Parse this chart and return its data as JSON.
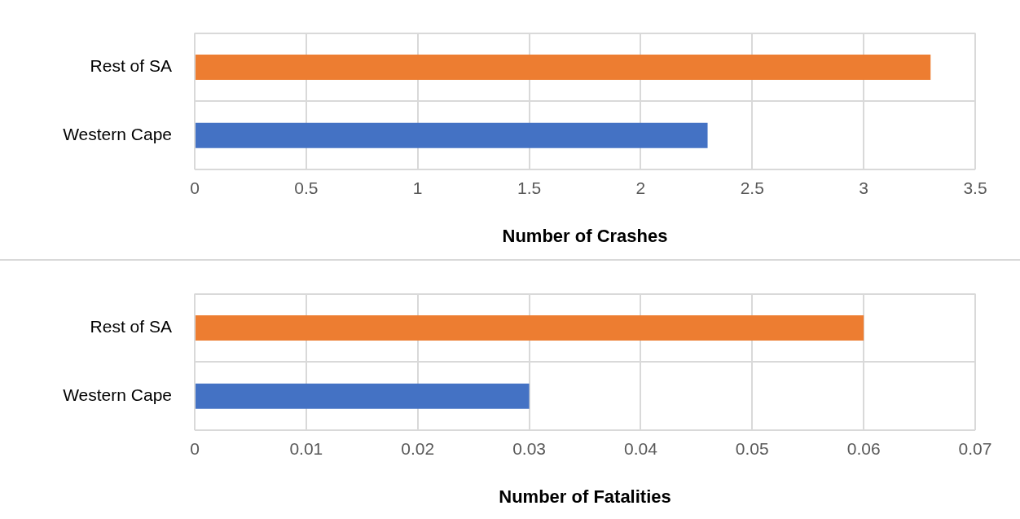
{
  "chart_data": [
    {
      "type": "bar",
      "orientation": "horizontal",
      "xlabel": "Number of Crashes",
      "categories": [
        "Rest of SA",
        "Western Cape"
      ],
      "values": [
        3.3,
        2.3
      ],
      "colors": [
        "#ed7d31",
        "#4472c4"
      ],
      "xlim": [
        0,
        3.5
      ],
      "xticks": [
        0,
        0.5,
        1,
        1.5,
        2,
        2.5,
        3,
        3.5
      ],
      "grid": true
    },
    {
      "type": "bar",
      "orientation": "horizontal",
      "xlabel": "Number of Fatalities",
      "categories": [
        "Rest of SA",
        "Western Cape"
      ],
      "values": [
        0.06,
        0.03
      ],
      "colors": [
        "#ed7d31",
        "#4472c4"
      ],
      "xlim": [
        0,
        0.07
      ],
      "xticks": [
        0,
        0.01,
        0.02,
        0.03,
        0.04,
        0.05,
        0.06,
        0.07
      ],
      "grid": true
    }
  ]
}
